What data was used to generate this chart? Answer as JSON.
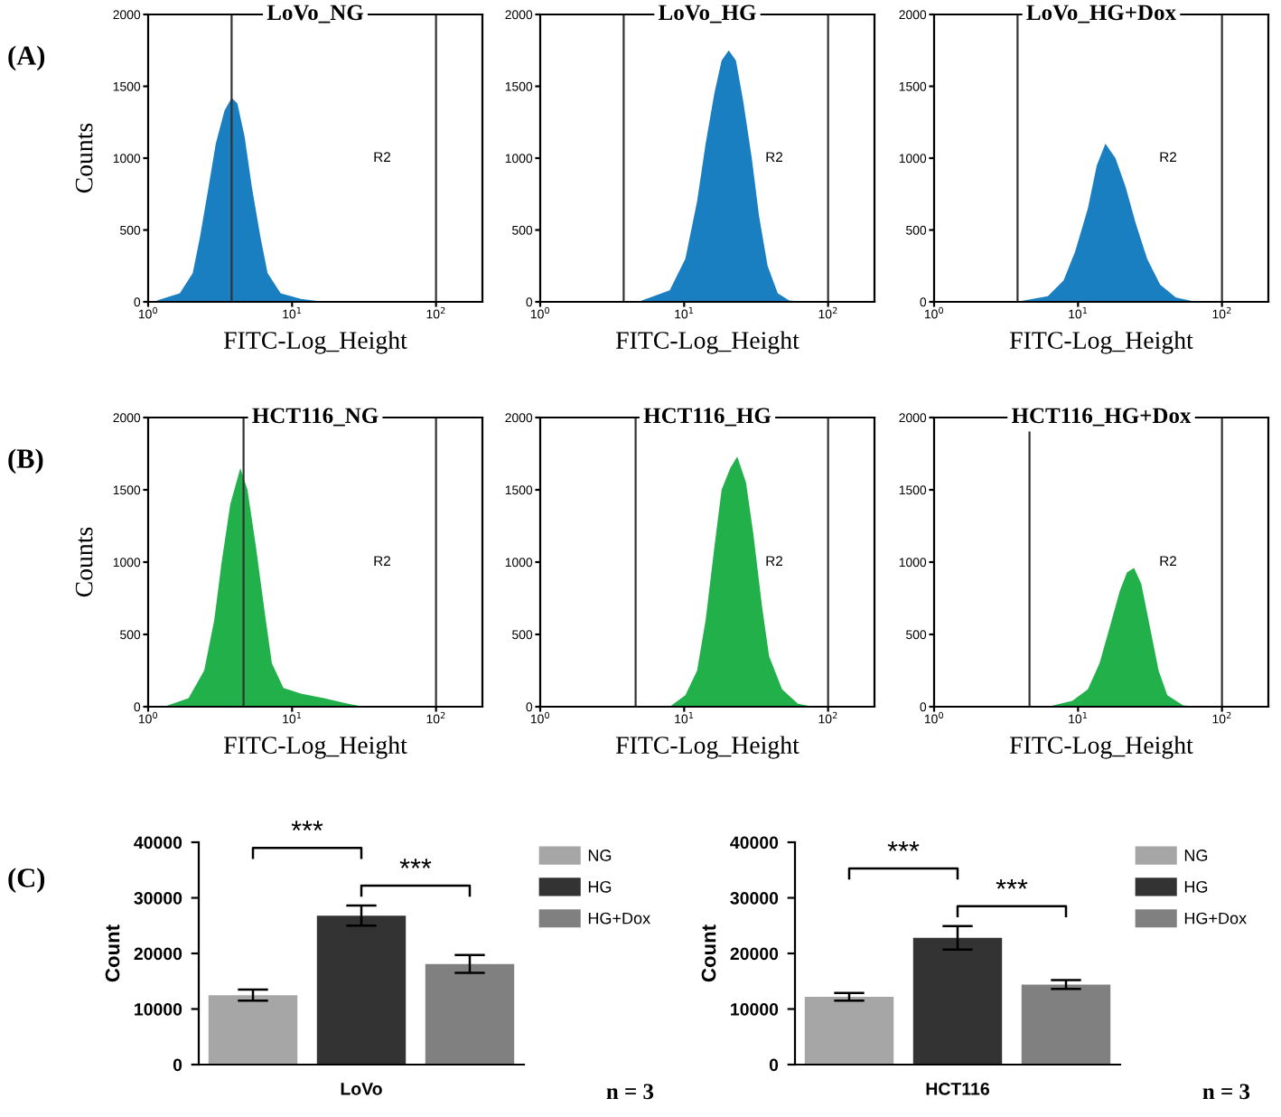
{
  "chart_data": [
    {
      "type": "area",
      "title": "LoVo_NG",
      "xlabel": "FITC-Log_Height",
      "ylabel": "Counts",
      "annotations": [
        "(A)",
        "R2"
      ],
      "log": "x",
      "xlim": [
        1,
        210
      ],
      "xticks": [
        {
          "value": 1,
          "label": "10$^{0}$"
        },
        {
          "value": 10,
          "label": "10$^{1}$"
        },
        {
          "value": 100,
          "label": "10$^{2}$"
        }
      ],
      "ylim": [
        0,
        2000
      ],
      "yticks": [
        0,
        500,
        1000,
        1500,
        2000
      ],
      "ref_lines": [
        {
          "axis": "x",
          "value": 3.8,
          "color": "#333333"
        },
        {
          "axis": "x",
          "value": 100,
          "color": "#333333"
        }
      ],
      "series": [
        {
          "color": "#1a7fc1",
          "x": [
            1.15,
            1.66,
            2.04,
            2.29,
            2.63,
            2.95,
            3.39,
            3.8,
            4.17,
            4.68,
            5.25,
            6.03,
            6.76,
            8.32,
            11.5,
            16.6
          ],
          "values": [
            10,
            60,
            200,
            450,
            800,
            1100,
            1330,
            1420,
            1380,
            1150,
            800,
            450,
            200,
            60,
            20,
            0
          ]
        }
      ]
    },
    {
      "type": "area",
      "title": "LoVo_HG",
      "xlabel": "FITC-Log_Height",
      "annotations": [
        "R2"
      ],
      "log": "x",
      "xlim": [
        1,
        210
      ],
      "xticks": [
        {
          "value": 1,
          "label": "10$^{0}$"
        },
        {
          "value": 10,
          "label": "10$^{1}$"
        },
        {
          "value": 100,
          "label": "10$^{2}$"
        }
      ],
      "ylim": [
        0,
        2000
      ],
      "yticks": [
        0,
        500,
        1000,
        1500,
        2000
      ],
      "ref_lines": [
        {
          "axis": "x",
          "value": 3.8,
          "color": "#333333"
        },
        {
          "axis": "x",
          "value": 100,
          "color": "#333333"
        }
      ],
      "series": [
        {
          "color": "#1a7fc1",
          "x": [
            4.79,
            7.94,
            10.2,
            12.3,
            14.1,
            16.2,
            18.2,
            20.4,
            22.9,
            25.7,
            29.5,
            33.1,
            38.0,
            44.7,
            53.7,
            69.2
          ],
          "values": [
            0,
            80,
            300,
            700,
            1100,
            1450,
            1680,
            1750,
            1680,
            1400,
            1000,
            600,
            250,
            60,
            10,
            0
          ]
        }
      ]
    },
    {
      "type": "area",
      "title": "LoVo_HG+Dox",
      "xlabel": "FITC-Log_Height",
      "annotations": [
        "R2"
      ],
      "log": "x",
      "xlim": [
        1,
        210
      ],
      "xticks": [
        {
          "value": 1,
          "label": "10$^{0}$"
        },
        {
          "value": 10,
          "label": "10$^{1}$"
        },
        {
          "value": 100,
          "label": "10$^{2}$"
        }
      ],
      "ylim": [
        0,
        2000
      ],
      "yticks": [
        0,
        500,
        1000,
        1500,
        2000
      ],
      "ref_lines": [
        {
          "axis": "x",
          "value": 3.8,
          "color": "#333333"
        },
        {
          "axis": "x",
          "value": 100,
          "color": "#333333"
        }
      ],
      "series": [
        {
          "color": "#1a7fc1",
          "x": [
            3.72,
            6.17,
            7.94,
            9.55,
            11.7,
            13.5,
            15.5,
            18.2,
            21.4,
            25.1,
            30.2,
            37.2,
            47.9,
            66.1
          ],
          "values": [
            0,
            40,
            150,
            350,
            650,
            950,
            1100,
            1000,
            800,
            550,
            300,
            120,
            30,
            0
          ]
        }
      ]
    },
    {
      "type": "area",
      "title": "HCT116_NG",
      "xlabel": "FITC-Log_Height",
      "ylabel": "Counts",
      "annotations": [
        "(B)",
        "R2"
      ],
      "log": "x",
      "xlim": [
        1,
        210
      ],
      "xticks": [
        {
          "value": 1,
          "label": "10$^{0}$"
        },
        {
          "value": 10,
          "label": "10$^{1}$"
        },
        {
          "value": 100,
          "label": "10$^{2}$"
        }
      ],
      "ylim": [
        0,
        2000
      ],
      "yticks": [
        0,
        500,
        1000,
        1500,
        2000
      ],
      "ref_lines": [
        {
          "axis": "x",
          "value": 4.6,
          "color": "#333333"
        },
        {
          "axis": "x",
          "value": 100,
          "color": "#333333"
        }
      ],
      "series": [
        {
          "color": "#22b04b",
          "x": [
            1.29,
            1.91,
            2.45,
            2.88,
            3.24,
            3.72,
            4.37,
            4.9,
            5.62,
            6.46,
            7.24,
            8.71,
            11.5,
            16.6,
            24.5,
            31.6
          ],
          "values": [
            0,
            60,
            250,
            600,
            1000,
            1400,
            1650,
            1500,
            1100,
            650,
            300,
            130,
            90,
            60,
            20,
            0
          ]
        }
      ]
    },
    {
      "type": "area",
      "title": "HCT116_HG",
      "xlabel": "FITC-Log_Height",
      "annotations": [
        "R2"
      ],
      "log": "x",
      "xlim": [
        1,
        210
      ],
      "xticks": [
        {
          "value": 1,
          "label": "10$^{0}$"
        },
        {
          "value": 10,
          "label": "10$^{1}$"
        },
        {
          "value": 100,
          "label": "10$^{2}$"
        }
      ],
      "ylim": [
        0,
        2000
      ],
      "yticks": [
        0,
        500,
        1000,
        1500,
        2000
      ],
      "ref_lines": [
        {
          "axis": "x",
          "value": 4.6,
          "color": "#333333"
        },
        {
          "axis": "x",
          "value": 100,
          "color": "#333333"
        }
      ],
      "series": [
        {
          "color": "#22b04b",
          "x": [
            7.94,
            10.2,
            12.3,
            14.1,
            16.2,
            18.2,
            20.9,
            23.4,
            26.9,
            30.2,
            34.7,
            38.9,
            47.9,
            61.7,
            79.4
          ],
          "values": [
            0,
            80,
            250,
            600,
            1100,
            1500,
            1650,
            1730,
            1550,
            1200,
            700,
            350,
            120,
            20,
            0
          ]
        }
      ]
    },
    {
      "type": "area",
      "title": "HCT116_HG+Dox",
      "xlabel": "FITC-Log_Height",
      "annotations": [
        "R2"
      ],
      "log": "x",
      "xlim": [
        1,
        210
      ],
      "xticks": [
        {
          "value": 1,
          "label": "10$^{0}$"
        },
        {
          "value": 10,
          "label": "10$^{1}$"
        },
        {
          "value": 100,
          "label": "10$^{2}$"
        }
      ],
      "ylim": [
        0,
        2000
      ],
      "yticks": [
        0,
        500,
        1000,
        1500,
        2000
      ],
      "ref_lines": [
        {
          "axis": "x",
          "value": 4.6,
          "color": "#333333"
        },
        {
          "axis": "x",
          "value": 100,
          "color": "#333333"
        }
      ],
      "series": [
        {
          "color": "#22b04b",
          "x": [
            6.17,
            9.12,
            11.7,
            14.1,
            16.6,
            19.5,
            21.9,
            24.5,
            27.5,
            31.6,
            36.3,
            41.7,
            53.7,
            69.2
          ],
          "values": [
            0,
            40,
            120,
            300,
            550,
            800,
            930,
            960,
            850,
            550,
            250,
            80,
            10,
            0
          ]
        }
      ]
    },
    {
      "type": "bar",
      "stacked": true,
      "categories": [
        null,
        null,
        null
      ],
      "xlabel": "LoVo",
      "ylabel": "Count",
      "ylim": [
        0,
        40000
      ],
      "yticks": [
        0,
        10000,
        20000,
        30000,
        40000
      ],
      "legend": "right",
      "annotations": [
        "***",
        "***",
        "n = 3",
        "(C)"
      ],
      "series": [
        {
          "name": "NG",
          "color": "#a6a6a6",
          "values": [
            12500,
            null,
            null
          ],
          "errors": [
            1000,
            null,
            null
          ]
        },
        {
          "name": "HG",
          "color": "#333333",
          "values": [
            null,
            26800,
            null
          ],
          "errors": [
            null,
            1800,
            null
          ]
        },
        {
          "name": "HG+Dox",
          "color": "#808080",
          "values": [
            null,
            null,
            18100
          ],
          "errors": [
            null,
            null,
            1600
          ]
        }
      ]
    },
    {
      "type": "bar",
      "stacked": true,
      "categories": [
        null,
        null,
        null
      ],
      "xlabel": "HCT116",
      "ylabel": "Count",
      "ylim": [
        0,
        40000
      ],
      "yticks": [
        0,
        10000,
        20000,
        30000,
        40000
      ],
      "legend": "right",
      "annotations": [
        "***",
        "***",
        "n = 3"
      ],
      "series": [
        {
          "name": "NG",
          "color": "#a6a6a6",
          "values": [
            12200,
            null,
            null
          ],
          "errors": [
            700,
            null,
            null
          ]
        },
        {
          "name": "HG",
          "color": "#333333",
          "values": [
            null,
            22800,
            null
          ],
          "errors": [
            null,
            2100,
            null
          ]
        },
        {
          "name": "HG+Dox",
          "color": "#808080",
          "values": [
            null,
            null,
            14400
          ],
          "errors": [
            null,
            null,
            800
          ]
        }
      ]
    }
  ]
}
